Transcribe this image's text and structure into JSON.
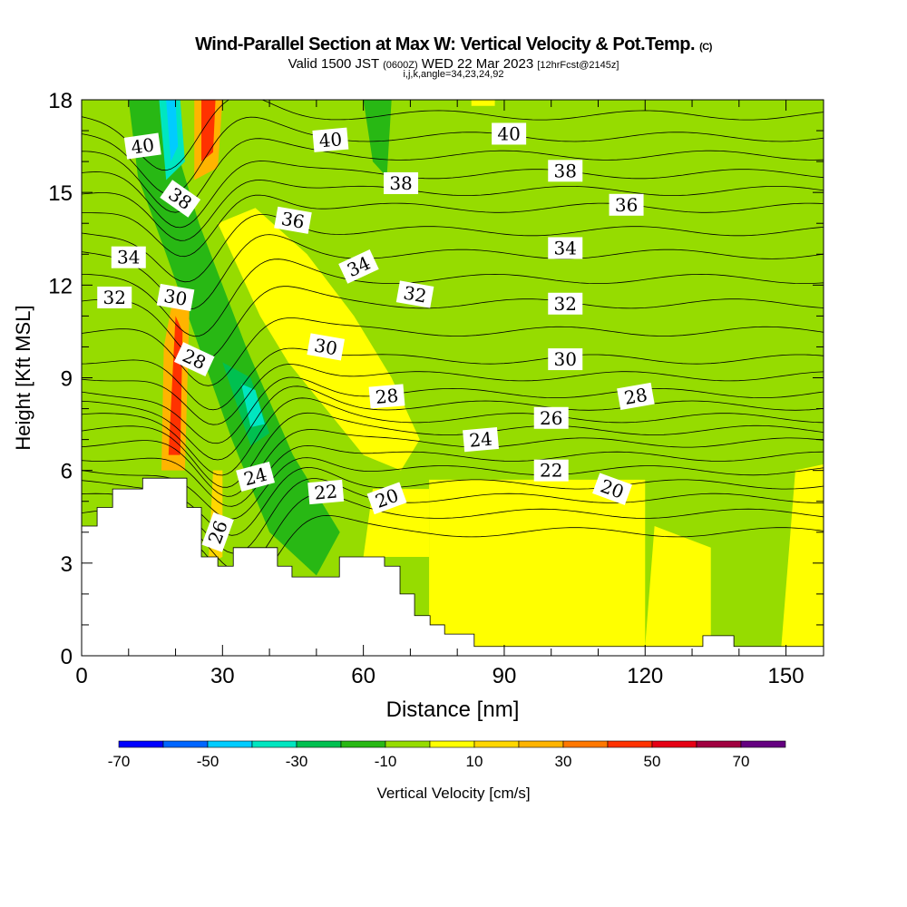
{
  "title": {
    "main": "Wind-Parallel Section at Max W: Vertical Velocity & Pot.Temp.",
    "copyright": "(C)"
  },
  "subtitle": {
    "valid": "Valid 1500 JST",
    "utc": "(0600Z)",
    "date": "WED 22 Mar 2023",
    "fcst": "[12hrFcst@2145z]"
  },
  "subtitle2": "i,j,k,angle=34,23,24,92",
  "chart_data": {
    "type": "heatmap",
    "title": "Wind-Parallel Section at Max W: Vertical Velocity & Pot.Temp.",
    "xlabel": "Distance [nm]",
    "ylabel": "Height [Kft MSL]",
    "xlim": [
      0,
      158
    ],
    "ylim": [
      0,
      18
    ],
    "xticks": [
      0,
      30,
      60,
      90,
      120,
      150
    ],
    "yticks": [
      0,
      3,
      6,
      9,
      12,
      15,
      18
    ],
    "background_level": -5,
    "colorbar": {
      "label": "Vertical Velocity [cm/s]",
      "edges": [
        -70,
        -60,
        -50,
        -40,
        -30,
        -20,
        -10,
        0,
        10,
        20,
        30,
        40,
        50,
        60,
        70,
        80
      ],
      "tick_labels": [
        "-70",
        "-50",
        "-30",
        "-10",
        "10",
        "30",
        "50",
        "70"
      ],
      "colors": [
        "#0000ff",
        "#0066ff",
        "#00ccff",
        "#00e6c0",
        "#00c050",
        "#28b814",
        "#96dc00",
        "#ffff00",
        "#ffd700",
        "#ffb400",
        "#ff7800",
        "#ff3200",
        "#e60014",
        "#a00040",
        "#640080"
      ]
    },
    "velocity_regions": [
      {
        "level": 5,
        "poly": [
          [
            29,
            14
          ],
          [
            37,
            14.5
          ],
          [
            48,
            13
          ],
          [
            58,
            11
          ],
          [
            66,
            9
          ],
          [
            72,
            7
          ],
          [
            68,
            6
          ],
          [
            60,
            6.5
          ],
          [
            52,
            8
          ],
          [
            44,
            9.5
          ],
          [
            38,
            11
          ]
        ]
      },
      {
        "level": 5,
        "poly": [
          [
            74,
            0.3
          ],
          [
            120,
            0.3
          ],
          [
            120,
            5.7
          ],
          [
            74,
            5.7
          ]
        ]
      },
      {
        "level": 5,
        "poly": [
          [
            120,
            0.3
          ],
          [
            134,
            0.3
          ],
          [
            134,
            3.5
          ],
          [
            122,
            4.2
          ]
        ]
      },
      {
        "level": 5,
        "poly": [
          [
            149,
            0.3
          ],
          [
            158,
            0.3
          ],
          [
            158,
            6.2
          ],
          [
            152,
            6.0
          ]
        ]
      },
      {
        "level": 5,
        "poly": [
          [
            60,
            3.2
          ],
          [
            74,
            3.2
          ],
          [
            74,
            5.4
          ],
          [
            62,
            5.4
          ]
        ]
      },
      {
        "level": 5,
        "poly": [
          [
            83,
            17.8
          ],
          [
            88,
            17.8
          ],
          [
            88,
            18
          ],
          [
            83,
            18
          ]
        ]
      },
      {
        "level": -15,
        "poly": [
          [
            10,
            18
          ],
          [
            17,
            18
          ],
          [
            25,
            14
          ],
          [
            35,
            10
          ],
          [
            45,
            6.5
          ],
          [
            55,
            4
          ],
          [
            50,
            2.6
          ],
          [
            40,
            4
          ],
          [
            32,
            7
          ],
          [
            25,
            10
          ],
          [
            18,
            13
          ],
          [
            12,
            15.5
          ]
        ]
      },
      {
        "level": -15,
        "poly": [
          [
            60,
            18
          ],
          [
            66,
            18
          ],
          [
            65,
            15.5
          ],
          [
            62,
            16
          ]
        ]
      },
      {
        "level": -25,
        "poly": [
          [
            30,
            9.5
          ],
          [
            36,
            9
          ],
          [
            40,
            7.2
          ],
          [
            36,
            6.8
          ]
        ]
      },
      {
        "level": -35,
        "poly": [
          [
            34,
            8.8
          ],
          [
            37,
            8.6
          ],
          [
            39,
            7.5
          ],
          [
            36,
            7.4
          ]
        ]
      },
      {
        "level": -35,
        "poly": [
          [
            16.5,
            18
          ],
          [
            21,
            18
          ],
          [
            22,
            16
          ],
          [
            18,
            15.4
          ]
        ]
      },
      {
        "level": -45,
        "poly": [
          [
            18,
            18
          ],
          [
            20,
            18
          ],
          [
            20.5,
            16.5
          ],
          [
            19,
            16
          ]
        ]
      },
      {
        "level": 25,
        "poly": [
          [
            17,
            6
          ],
          [
            22,
            6
          ],
          [
            23,
            11.5
          ],
          [
            20,
            12
          ],
          [
            17.5,
            10
          ]
        ]
      },
      {
        "level": 45,
        "poly": [
          [
            18.5,
            6.5
          ],
          [
            21,
            6.5
          ],
          [
            21.5,
            10.5
          ],
          [
            20,
            11
          ]
        ]
      },
      {
        "level": 25,
        "poly": [
          [
            24,
            15.4
          ],
          [
            29,
            15.8
          ],
          [
            30,
            18
          ],
          [
            24,
            18
          ]
        ]
      },
      {
        "level": 45,
        "poly": [
          [
            25.5,
            16
          ],
          [
            28,
            16.3
          ],
          [
            28.5,
            18
          ],
          [
            25.5,
            18
          ]
        ]
      },
      {
        "level": 15,
        "poly": [
          [
            27,
            3
          ],
          [
            30,
            3.2
          ],
          [
            30,
            6
          ],
          [
            28,
            6
          ]
        ]
      }
    ],
    "theta_contours": {
      "levels_from": 18,
      "levels_to": 41,
      "step": 1
    },
    "theta_labels": [
      {
        "text": "40",
        "x": 13,
        "y": 16.5,
        "rot": -8
      },
      {
        "text": "40",
        "x": 53,
        "y": 16.7,
        "rot": -5
      },
      {
        "text": "40",
        "x": 91,
        "y": 16.9,
        "rot": 0
      },
      {
        "text": "38",
        "x": 21,
        "y": 14.8,
        "rot": 35
      },
      {
        "text": "38",
        "x": 68,
        "y": 15.3,
        "rot": 0
      },
      {
        "text": "38",
        "x": 103,
        "y": 15.7,
        "rot": 0
      },
      {
        "text": "36",
        "x": 45,
        "y": 14.1,
        "rot": 10
      },
      {
        "text": "36",
        "x": 116,
        "y": 14.6,
        "rot": 0
      },
      {
        "text": "34",
        "x": 10,
        "y": 12.9,
        "rot": 0
      },
      {
        "text": "34",
        "x": 59,
        "y": 12.6,
        "rot": -25
      },
      {
        "text": "34",
        "x": 103,
        "y": 13.2,
        "rot": 0
      },
      {
        "text": "32",
        "x": 7,
        "y": 11.6,
        "rot": 0
      },
      {
        "text": "32",
        "x": 71,
        "y": 11.7,
        "rot": 10
      },
      {
        "text": "32",
        "x": 103,
        "y": 11.4,
        "rot": 0
      },
      {
        "text": "30",
        "x": 20,
        "y": 11.6,
        "rot": 10
      },
      {
        "text": "30",
        "x": 52,
        "y": 10.0,
        "rot": 10
      },
      {
        "text": "30",
        "x": 103,
        "y": 9.6,
        "rot": 0
      },
      {
        "text": "28",
        "x": 24,
        "y": 9.6,
        "rot": 25
      },
      {
        "text": "28",
        "x": 65,
        "y": 8.4,
        "rot": -5
      },
      {
        "text": "28",
        "x": 118,
        "y": 8.4,
        "rot": -10
      },
      {
        "text": "26",
        "x": 29,
        "y": 4.0,
        "rot": -70
      },
      {
        "text": "26",
        "x": 100,
        "y": 7.7,
        "rot": 0
      },
      {
        "text": "24",
        "x": 37,
        "y": 5.8,
        "rot": -15
      },
      {
        "text": "24",
        "x": 85,
        "y": 7.0,
        "rot": -5
      },
      {
        "text": "22",
        "x": 52,
        "y": 5.3,
        "rot": -5
      },
      {
        "text": "22",
        "x": 100,
        "y": 6.0,
        "rot": 0
      },
      {
        "text": "20",
        "x": 65,
        "y": 5.1,
        "rot": -20
      },
      {
        "text": "20",
        "x": 113,
        "y": 5.4,
        "rot": 20
      }
    ],
    "terrain": [
      [
        0,
        4.2
      ],
      [
        3.3,
        4.2
      ],
      [
        3.3,
        4.8
      ],
      [
        6.6,
        4.8
      ],
      [
        6.6,
        5.4
      ],
      [
        13,
        5.4
      ],
      [
        13,
        5.75
      ],
      [
        22.4,
        5.75
      ],
      [
        22.4,
        4.8
      ],
      [
        25.5,
        4.8
      ],
      [
        25.5,
        3.2
      ],
      [
        29,
        3.2
      ],
      [
        29,
        2.9
      ],
      [
        32.3,
        2.9
      ],
      [
        32.3,
        3.5
      ],
      [
        41.7,
        3.5
      ],
      [
        41.7,
        2.9
      ],
      [
        44.8,
        2.9
      ],
      [
        44.8,
        2.55
      ],
      [
        54.9,
        2.55
      ],
      [
        54.9,
        3.2
      ],
      [
        64.5,
        3.2
      ],
      [
        64.5,
        2.9
      ],
      [
        67.8,
        2.9
      ],
      [
        67.8,
        2.0
      ],
      [
        70.9,
        2.0
      ],
      [
        70.9,
        1.3
      ],
      [
        74.2,
        1.3
      ],
      [
        74.2,
        1.0
      ],
      [
        77.3,
        1.0
      ],
      [
        77.3,
        0.7
      ],
      [
        83.6,
        0.7
      ],
      [
        83.6,
        0.3
      ],
      [
        132.3,
        0.3
      ],
      [
        132.3,
        0.65
      ],
      [
        138.9,
        0.65
      ],
      [
        138.9,
        0.3
      ],
      [
        158,
        0.3
      ]
    ]
  }
}
